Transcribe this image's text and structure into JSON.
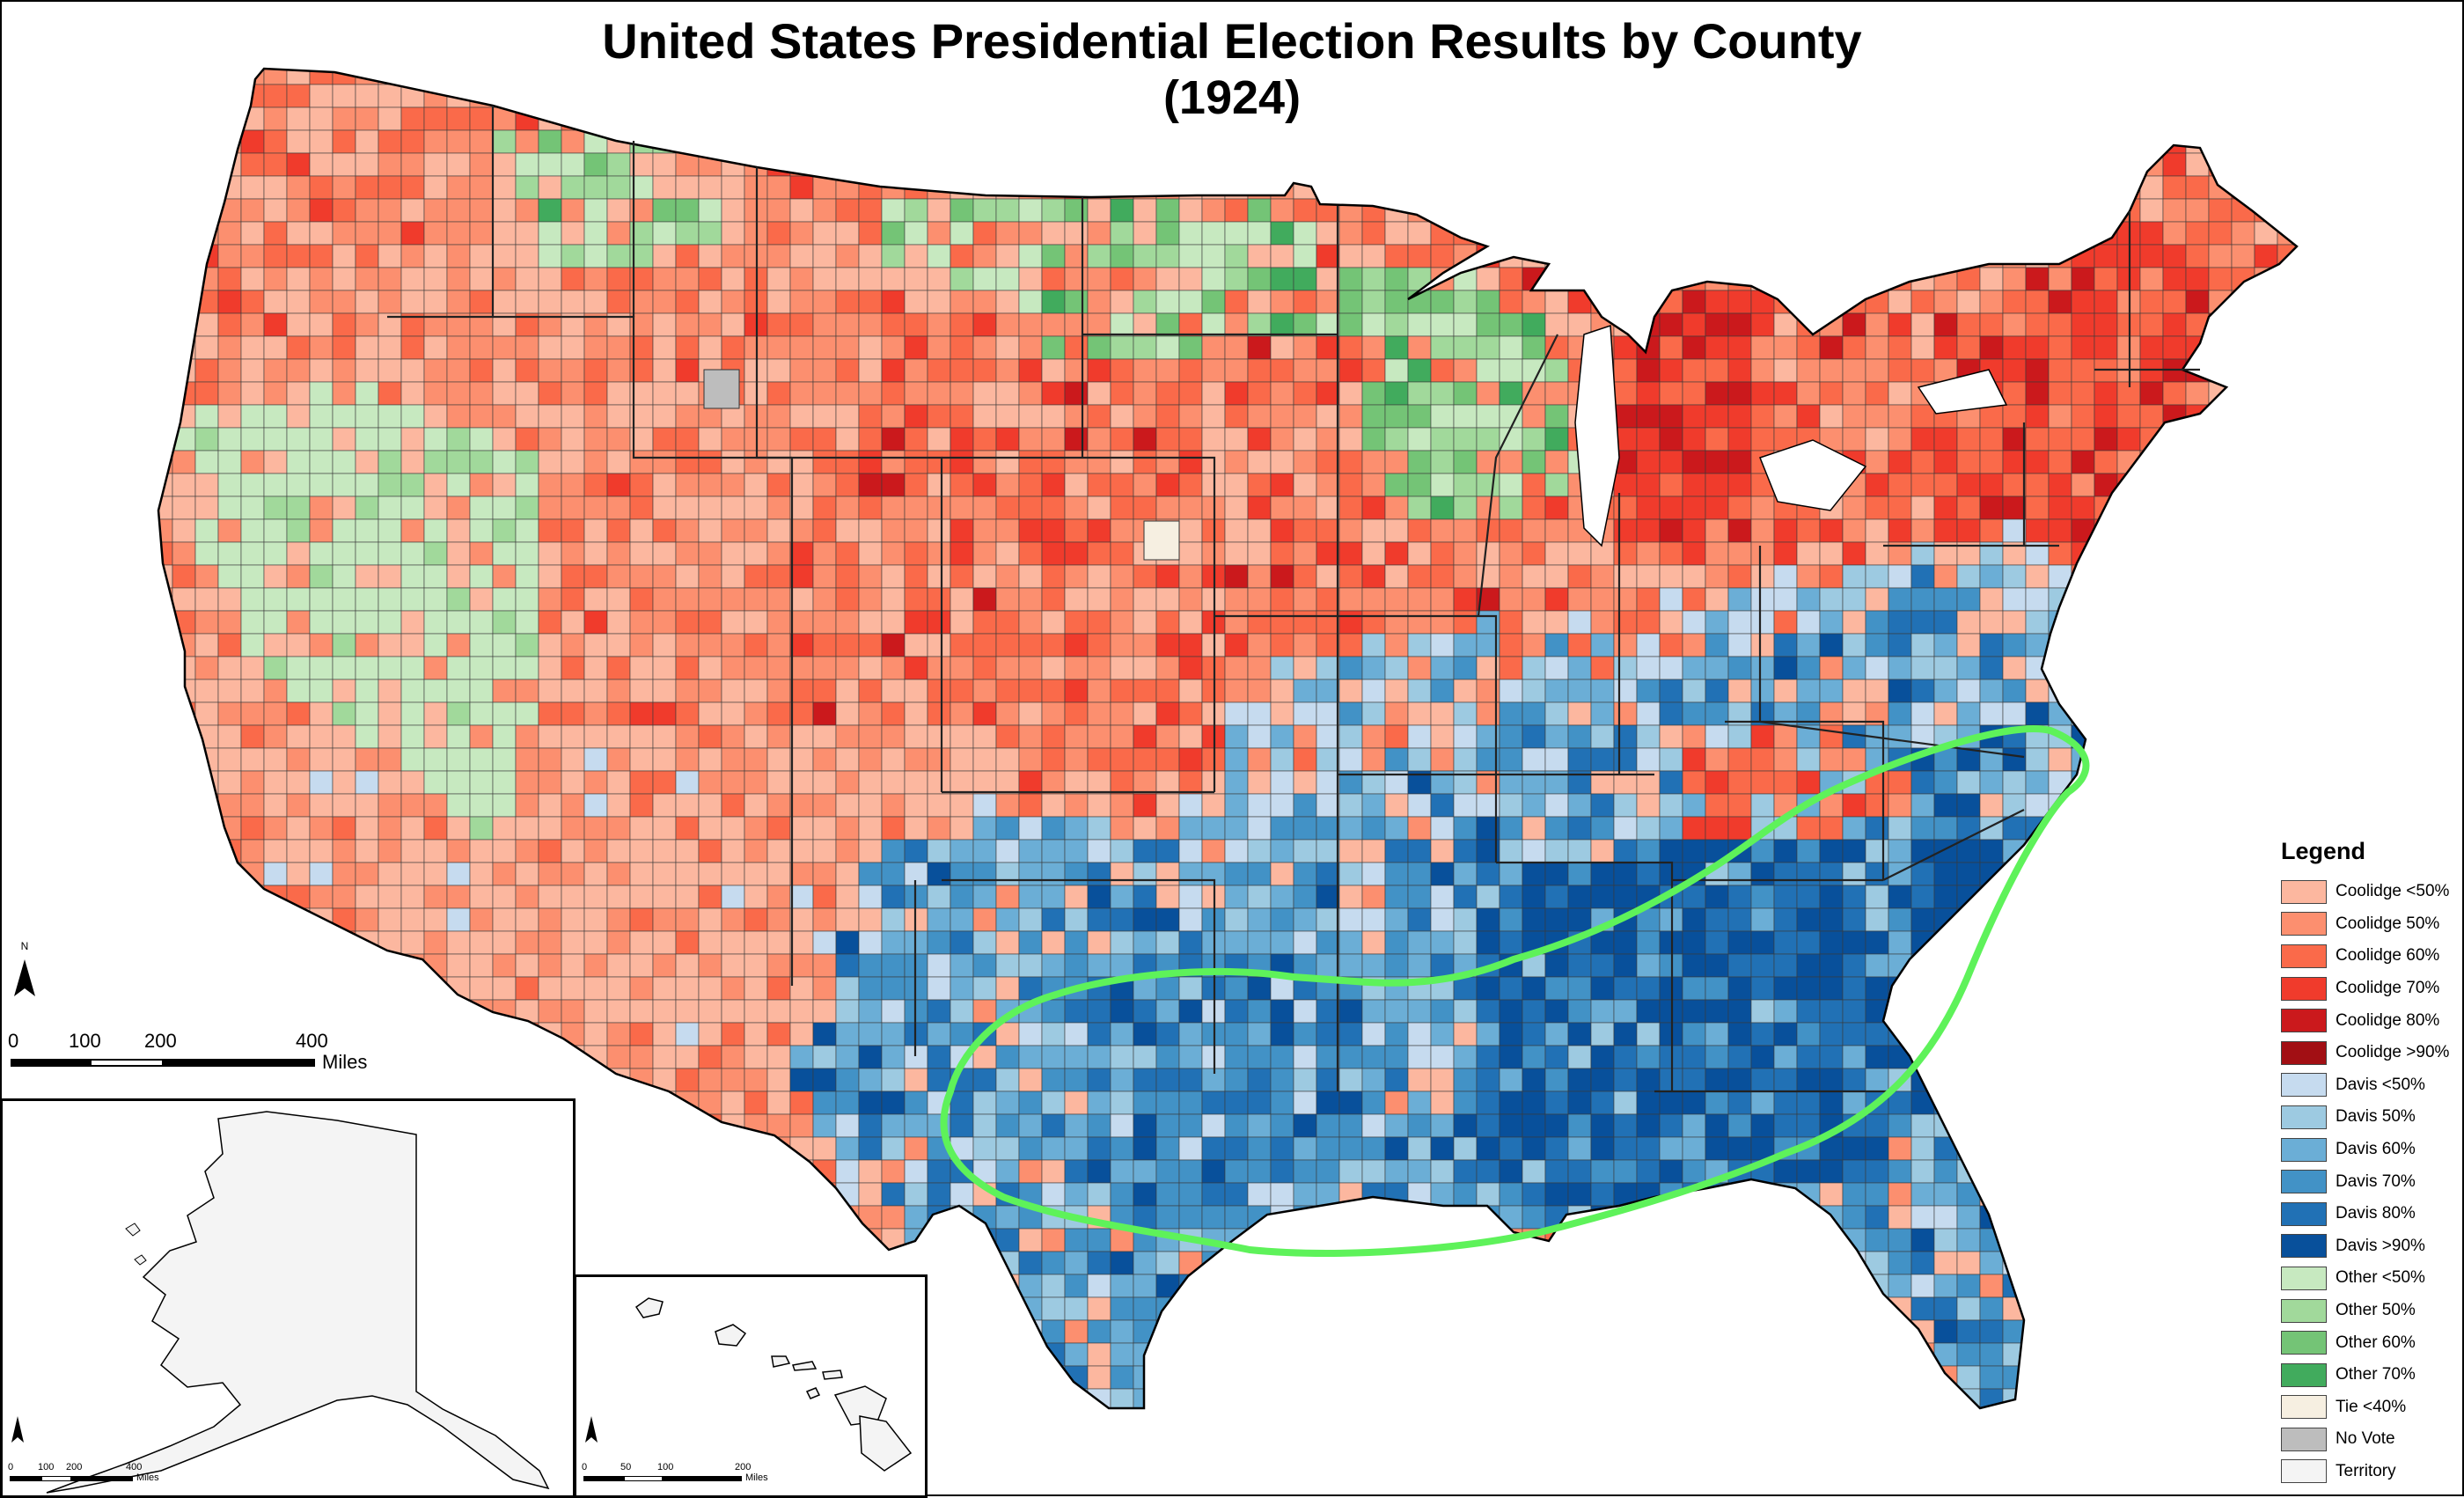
{
  "title": {
    "line1": "United States Presidential Election Results by County",
    "line2": "(1924)"
  },
  "legend": {
    "title": "Legend",
    "items": [
      {
        "label": "Coolidge <50%",
        "color": "#fcb79f"
      },
      {
        "label": "Coolidge 50%",
        "color": "#fc8f6f"
      },
      {
        "label": "Coolidge 60%",
        "color": "#fa6a4a"
      },
      {
        "label": "Coolidge 70%",
        "color": "#f03b2c"
      },
      {
        "label": "Coolidge 80%",
        "color": "#cb191c"
      },
      {
        "label": "Coolidge >90%",
        "color": "#a20f14"
      },
      {
        "label": "Davis <50%",
        "color": "#c6dbef"
      },
      {
        "label": "Davis 50%",
        "color": "#9dcae1"
      },
      {
        "label": "Davis 60%",
        "color": "#6baed6"
      },
      {
        "label": "Davis 70%",
        "color": "#4292c6"
      },
      {
        "label": "Davis 80%",
        "color": "#2171b5"
      },
      {
        "label": "Davis >90%",
        "color": "#08509b"
      },
      {
        "label": "Other <50%",
        "color": "#c7e9c0"
      },
      {
        "label": "Other 50%",
        "color": "#a1d99b"
      },
      {
        "label": "Other 60%",
        "color": "#74c476"
      },
      {
        "label": "Other 70%",
        "color": "#41ab5d"
      },
      {
        "label": "Tie <40%",
        "color": "#f6efe1"
      },
      {
        "label": "No Vote",
        "color": "#bdbdbd"
      },
      {
        "label": "Territory",
        "color": "#f4f4f4"
      }
    ]
  },
  "scale_main": {
    "ticks": [
      "0",
      "100",
      "200",
      "400"
    ],
    "unit": "Miles"
  },
  "scale_alaska": {
    "ticks": [
      "0",
      "100",
      "200",
      "400"
    ],
    "unit": "Miles"
  },
  "scale_hawaii": {
    "ticks": [
      "0",
      "50",
      "100",
      "200"
    ],
    "unit": "Miles"
  },
  "north_label": "N",
  "annotation": {
    "color": "#5ef25a"
  },
  "colors": {
    "state_border": "#222222",
    "outline": "#000000"
  }
}
